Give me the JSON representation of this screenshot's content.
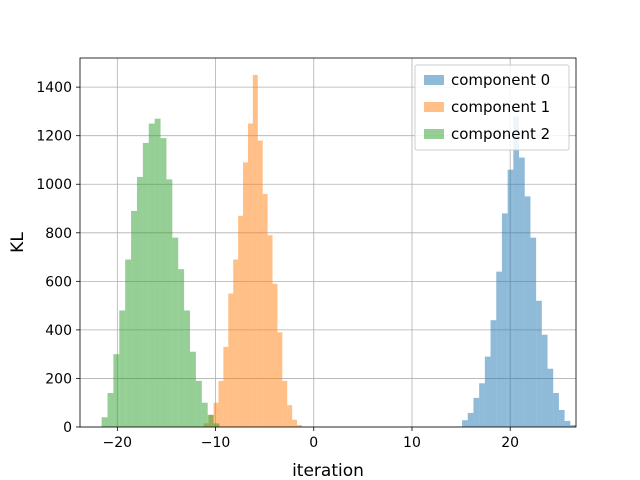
{
  "chart_data": {
    "type": "bar",
    "subtype": "histogram",
    "xlabel": "iteration",
    "ylabel": "KL",
    "xlim": [
      -23.8,
      26.7
    ],
    "ylim": [
      0,
      1520
    ],
    "xticks": [
      -20,
      -10,
      0,
      10,
      20
    ],
    "xtick_labels": [
      "−20",
      "−10",
      "0",
      "10",
      "20"
    ],
    "yticks": [
      0,
      200,
      400,
      600,
      800,
      1000,
      1200,
      1400
    ],
    "grid": true,
    "legend_position": "top-right",
    "series": [
      {
        "name": "component 0",
        "color": "#1f77b4",
        "bin_width": 0.58,
        "bins": [
          [
            14.52,
            2
          ],
          [
            15.1,
            28
          ],
          [
            15.68,
            58
          ],
          [
            16.26,
            120
          ],
          [
            16.84,
            180
          ],
          [
            17.42,
            290
          ],
          [
            18.0,
            440
          ],
          [
            18.58,
            640
          ],
          [
            19.16,
            880
          ],
          [
            19.74,
            1060
          ],
          [
            20.32,
            1280
          ],
          [
            20.9,
            1110
          ],
          [
            21.48,
            950
          ],
          [
            22.06,
            780
          ],
          [
            22.64,
            520
          ],
          [
            23.22,
            380
          ],
          [
            23.8,
            240
          ],
          [
            24.38,
            140
          ],
          [
            24.96,
            70
          ],
          [
            25.54,
            25
          ],
          [
            26.12,
            8
          ]
        ]
      },
      {
        "name": "component 1",
        "color": "#ff7f0e",
        "bin_width": 0.5,
        "bins": [
          [
            -11.2,
            15
          ],
          [
            -10.7,
            50
          ],
          [
            -10.2,
            100
          ],
          [
            -9.7,
            190
          ],
          [
            -9.2,
            330
          ],
          [
            -8.7,
            550
          ],
          [
            -8.2,
            690
          ],
          [
            -7.7,
            870
          ],
          [
            -7.2,
            1090
          ],
          [
            -6.7,
            1250
          ],
          [
            -6.2,
            1450
          ],
          [
            -5.7,
            1180
          ],
          [
            -5.2,
            960
          ],
          [
            -4.7,
            790
          ],
          [
            -4.2,
            590
          ],
          [
            -3.7,
            390
          ],
          [
            -3.2,
            190
          ],
          [
            -2.7,
            90
          ],
          [
            -2.2,
            30
          ],
          [
            -1.7,
            8
          ]
        ]
      },
      {
        "name": "component 2",
        "color": "#2ca02c",
        "bin_width": 0.6,
        "bins": [
          [
            -21.6,
            40
          ],
          [
            -21.0,
            140
          ],
          [
            -20.4,
            300
          ],
          [
            -19.8,
            480
          ],
          [
            -19.2,
            690
          ],
          [
            -18.6,
            890
          ],
          [
            -18.0,
            1030
          ],
          [
            -17.4,
            1170
          ],
          [
            -16.8,
            1250
          ],
          [
            -16.2,
            1270
          ],
          [
            -15.6,
            1190
          ],
          [
            -15.0,
            1020
          ],
          [
            -14.4,
            780
          ],
          [
            -13.8,
            650
          ],
          [
            -13.2,
            480
          ],
          [
            -12.6,
            310
          ],
          [
            -12.0,
            190
          ],
          [
            -11.4,
            100
          ],
          [
            -10.8,
            50
          ],
          [
            -10.2,
            15
          ]
        ]
      }
    ]
  }
}
